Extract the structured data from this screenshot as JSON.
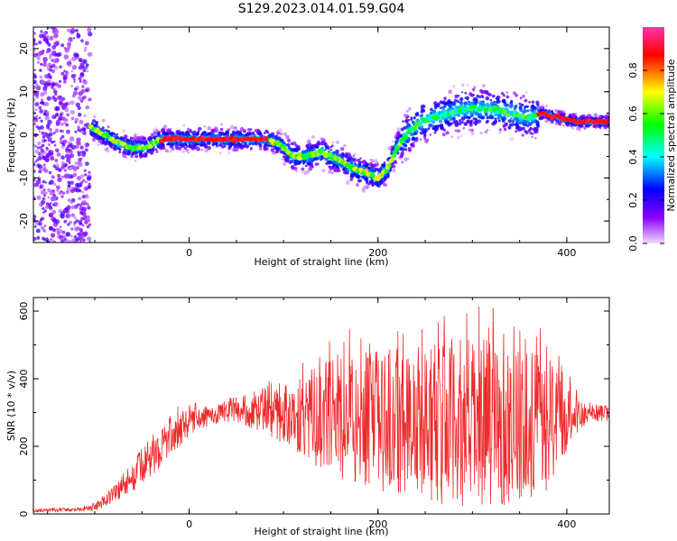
{
  "title": "S129.2023.014.01.59.G04",
  "colors": {
    "snr_line": "#ee2b2b"
  },
  "chart_data": [
    {
      "type": "heatmap",
      "xlabel": "Height of straight line (km)",
      "ylabel": "Frequency (Hz)",
      "xlim": [
        -165,
        445
      ],
      "ylim": [
        -25,
        25
      ],
      "xticks": [
        0,
        200,
        400
      ],
      "yticks": [
        -20,
        -10,
        0,
        10,
        20
      ],
      "colorbar": {
        "label": "Normalized spectral amplitude",
        "range": [
          0,
          1
        ],
        "ticks": [
          "0.0",
          "0.2",
          "0.4",
          "0.6",
          "0.8"
        ],
        "colormap": [
          "#f2d9ff",
          "#8800ff",
          "#0000ff",
          "#00ffff",
          "#00ff00",
          "#ffff00",
          "#ff0000",
          "#ff33aa"
        ]
      },
      "ridge_frequency": {
        "x": [
          -105,
          -90,
          -75,
          -60,
          -45,
          -30,
          0,
          30,
          60,
          80,
          95,
          110,
          125,
          140,
          160,
          175,
          190,
          200,
          210,
          220,
          230,
          245,
          260,
          275,
          290,
          305,
          320,
          340,
          360,
          375,
          390,
          410,
          430,
          445
        ],
        "y": [
          2,
          0,
          -2,
          -3,
          -3,
          -1,
          -1,
          -1,
          -1,
          -1,
          -2,
          -5,
          -5,
          -4,
          -6,
          -8,
          -9,
          -10,
          -8,
          -3,
          0,
          3,
          4,
          5,
          6,
          6,
          6,
          5,
          4,
          5,
          4,
          3,
          3,
          3
        ]
      },
      "noise_region_x": [
        -165,
        -105
      ]
    },
    {
      "type": "line",
      "xlabel": "Height of straight line (km)",
      "ylabel": "SNR (10 * v/v)",
      "xlim": [
        -165,
        445
      ],
      "ylim": [
        0,
        640
      ],
      "xticks": [
        0,
        200,
        400
      ],
      "yticks": [
        0,
        200,
        400,
        600
      ],
      "series": [
        {
          "x": [
            -165,
            -120,
            -100,
            -80,
            -60,
            -40,
            -20,
            0,
            20,
            40,
            60,
            80,
            100,
            120,
            140,
            160,
            180,
            200,
            220,
            240,
            260,
            280,
            300,
            320,
            340,
            360,
            380,
            400,
            420,
            445
          ],
          "mean": [
            10,
            12,
            20,
            60,
            110,
            170,
            230,
            270,
            290,
            300,
            300,
            300,
            295,
            290,
            290,
            285,
            280,
            275,
            280,
            275,
            270,
            270,
            265,
            270,
            270,
            265,
            265,
            290,
            295,
            300
          ],
          "spread": [
            5,
            5,
            10,
            30,
            45,
            60,
            60,
            40,
            30,
            30,
            40,
            60,
            90,
            120,
            160,
            180,
            200,
            210,
            220,
            230,
            240,
            250,
            250,
            250,
            240,
            220,
            200,
            100,
            30,
            25
          ]
        }
      ]
    }
  ]
}
